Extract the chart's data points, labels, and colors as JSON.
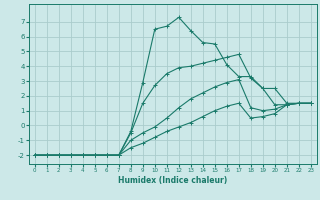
{
  "background_color": "#cce8e8",
  "grid_color": "#aacccc",
  "line_color": "#1a7a6a",
  "xlabel": "Humidex (Indice chaleur)",
  "xlim": [
    -0.5,
    23.5
  ],
  "ylim": [
    -2.6,
    8.2
  ],
  "yticks": [
    -2,
    -1,
    0,
    1,
    2,
    3,
    4,
    5,
    6,
    7
  ],
  "xticks": [
    0,
    1,
    2,
    3,
    4,
    5,
    6,
    7,
    8,
    9,
    10,
    11,
    12,
    13,
    14,
    15,
    16,
    17,
    18,
    19,
    20,
    21,
    22,
    23
  ],
  "series": [
    {
      "x": [
        0,
        1,
        2,
        3,
        4,
        5,
        6,
        7,
        8,
        9,
        10,
        11,
        12,
        13,
        14,
        15,
        16,
        17,
        18,
        19,
        20,
        21,
        22,
        23
      ],
      "y": [
        -2,
        -2,
        -2,
        -2,
        -2,
        -2,
        -2,
        -2,
        -0.4,
        2.9,
        6.5,
        6.7,
        7.3,
        6.4,
        5.6,
        5.5,
        4.1,
        3.3,
        3.3,
        2.5,
        1.4,
        1.4,
        1.5,
        1.5
      ]
    },
    {
      "x": [
        0,
        1,
        2,
        3,
        4,
        5,
        6,
        7,
        8,
        9,
        10,
        11,
        12,
        13,
        14,
        15,
        16,
        17,
        18,
        19,
        20,
        21,
        22,
        23
      ],
      "y": [
        -2,
        -2,
        -2,
        -2,
        -2,
        -2,
        -2,
        -2,
        -0.5,
        1.5,
        2.7,
        3.5,
        3.9,
        4.0,
        4.2,
        4.4,
        4.6,
        4.8,
        3.2,
        2.5,
        2.5,
        1.5,
        1.5,
        1.5
      ]
    },
    {
      "x": [
        0,
        1,
        2,
        3,
        4,
        5,
        6,
        7,
        8,
        9,
        10,
        11,
        12,
        13,
        14,
        15,
        16,
        17,
        18,
        19,
        20,
        21,
        22,
        23
      ],
      "y": [
        -2,
        -2,
        -2,
        -2,
        -2,
        -2,
        -2,
        -2,
        -1.0,
        -0.5,
        -0.1,
        0.5,
        1.2,
        1.8,
        2.2,
        2.6,
        2.9,
        3.1,
        1.2,
        1.0,
        1.1,
        1.4,
        1.5,
        1.5
      ]
    },
    {
      "x": [
        0,
        1,
        2,
        3,
        4,
        5,
        6,
        7,
        8,
        9,
        10,
        11,
        12,
        13,
        14,
        15,
        16,
        17,
        18,
        19,
        20,
        21,
        22,
        23
      ],
      "y": [
        -2,
        -2,
        -2,
        -2,
        -2,
        -2,
        -2,
        -2,
        -1.5,
        -1.2,
        -0.8,
        -0.4,
        -0.1,
        0.2,
        0.6,
        1.0,
        1.3,
        1.5,
        0.5,
        0.6,
        0.8,
        1.4,
        1.5,
        1.5
      ]
    }
  ]
}
